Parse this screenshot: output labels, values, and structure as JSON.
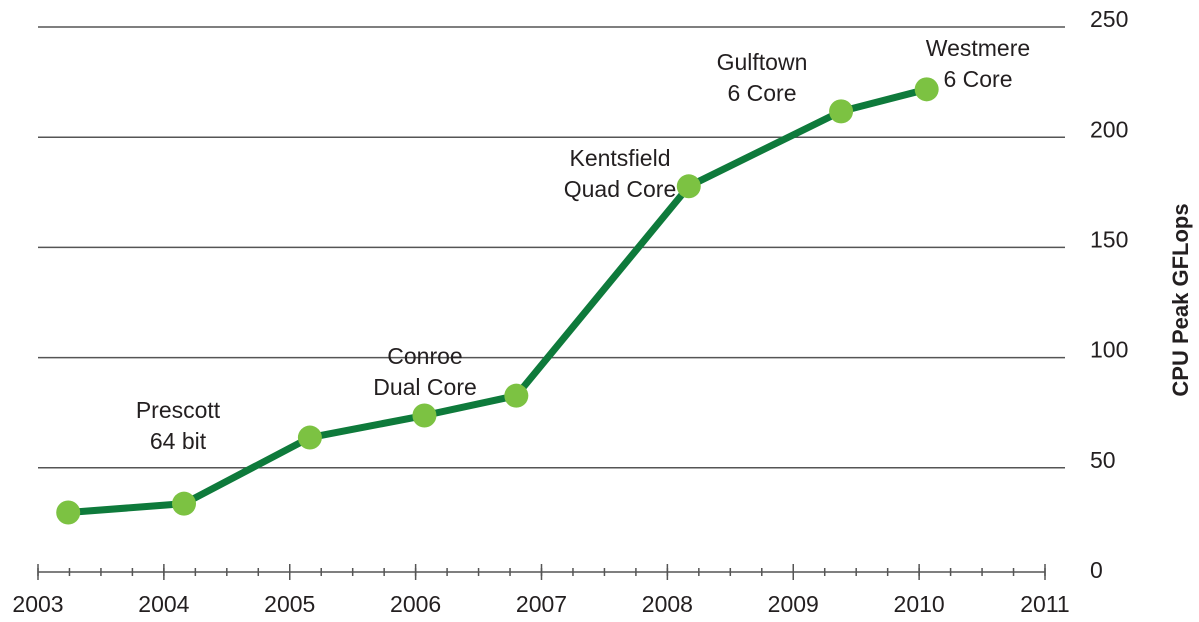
{
  "chart_data": {
    "type": "line",
    "y_label": "CPU Peak GFLops",
    "series": [
      {
        "name": "CPU Peak GFLops",
        "color": "#0e7a3b",
        "marker_color": "#7cc242",
        "x": [
          2003.24,
          2004.16,
          2005.16,
          2006.07,
          2006.8,
          2008.17,
          2009.38,
          2010.06
        ],
        "values": [
          27,
          31,
          61,
          71,
          80,
          175,
          209,
          219
        ]
      }
    ],
    "annotations": [
      [
        "Prescott",
        "64 bit"
      ],
      [
        "Conroe",
        "Dual Core"
      ],
      [
        "Kentsfield",
        "Quad Core"
      ],
      [
        "Gulftown",
        "6 Core"
      ],
      [
        "Westmere",
        "6 Core"
      ]
    ],
    "xlim": [
      2003,
      2011
    ],
    "xticks": [
      2003,
      2004,
      2005,
      2006,
      2007,
      2008,
      2009,
      2010,
      2011
    ],
    "ylim": [
      0,
      250
    ],
    "yticks": [
      0,
      50,
      100,
      150,
      200,
      250
    ],
    "grid": true
  }
}
